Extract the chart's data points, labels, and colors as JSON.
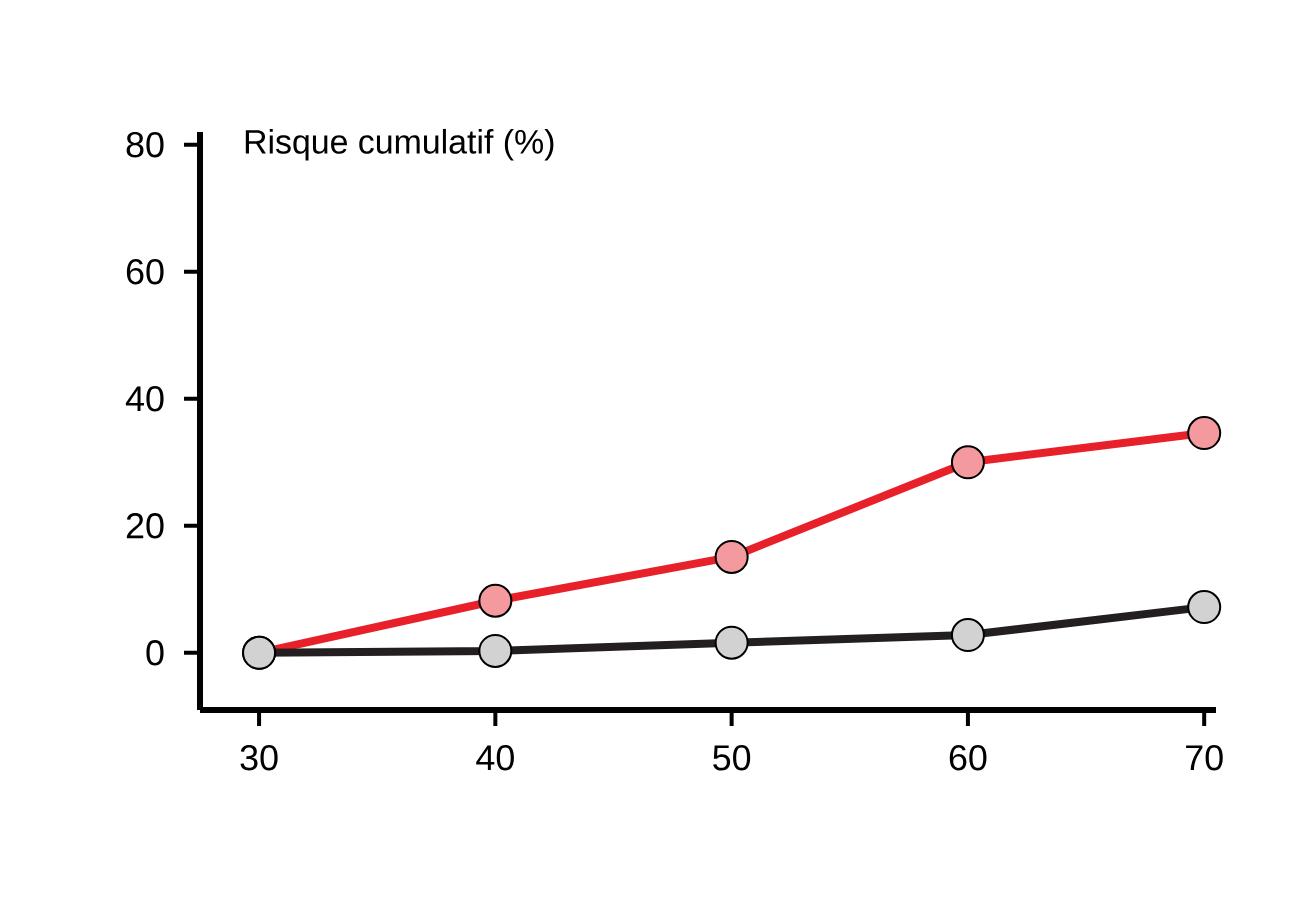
{
  "chart_data": {
    "type": "line",
    "ylabel": "Risque cumulatif (%)",
    "x": [
      30,
      40,
      50,
      60,
      70
    ],
    "series": [
      {
        "color": "#e8202a",
        "values": [
          0,
          8.2,
          15.1,
          30,
          34.6
        ]
      },
      {
        "color": "#231f20",
        "values": [
          0,
          0.3,
          1.6,
          2.8,
          7.2
        ]
      }
    ],
    "xlim": [
      27.5,
      70.5
    ],
    "ylim": [
      -9,
      82
    ],
    "xticks": [
      30,
      40,
      50,
      60,
      70
    ],
    "yticks": [
      0,
      20,
      40,
      60,
      80
    ],
    "marker": "circle",
    "line_style": "solid",
    "grid": false
  }
}
